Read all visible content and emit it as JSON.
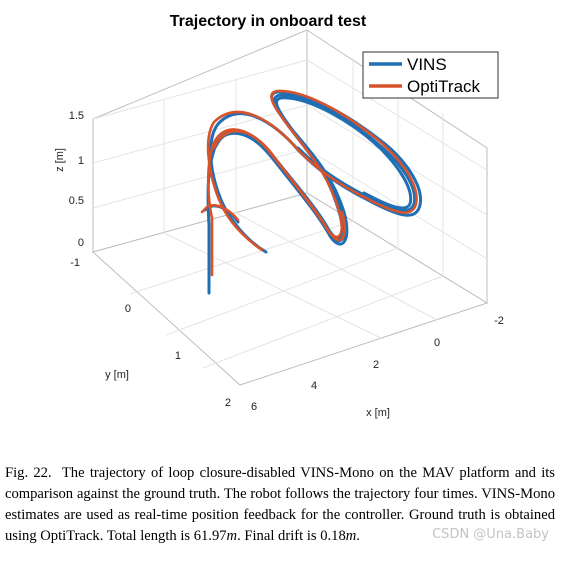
{
  "figure": {
    "title": "Trajectory in onboard test",
    "legend": [
      {
        "name": "VINS",
        "color": "#1f6fb5"
      },
      {
        "name": "OptiTrack",
        "color": "#d9532a"
      }
    ],
    "legend_position": "top-right",
    "grid": true,
    "axes": {
      "x": {
        "label": "x [m]",
        "ticks": [
          "6",
          "4",
          "2",
          "0",
          "-2"
        ]
      },
      "y": {
        "label": "y [m]",
        "ticks": [
          "-1",
          "0",
          "1",
          "2"
        ]
      },
      "z": {
        "label": "z [m]",
        "ticks": [
          "0",
          "0.5",
          "1",
          "1.5"
        ]
      }
    }
  },
  "chart_data": {
    "type": "line",
    "title": "Trajectory in onboard test",
    "xlabel": "x [m]",
    "ylabel": "y [m]",
    "zlabel": "z [m]",
    "xlim": [
      -2,
      6
    ],
    "ylim": [
      -1,
      2
    ],
    "zlim": [
      0,
      1.5
    ],
    "series": [
      {
        "name": "VINS",
        "color": "#1f6fb5"
      },
      {
        "name": "OptiTrack",
        "color": "#d9532a"
      }
    ]
  },
  "caption": {
    "label": "Fig. 22.",
    "text_before_length": "The trajectory of loop closure-disabled VINS-Mono on the MAV platform and its comparison against the ground truth. The robot follows the trajectory four times. VINS-Mono estimates are used as real-time position feedback for the controller. Ground truth is obtained using OptiTrack. Total length is 61.97",
    "unit_m": "m",
    "text_drift": ". Final drift is 0.18",
    "unit_m2": "m",
    "end": ".",
    "watermark": "CSDN @Una.Baby"
  }
}
